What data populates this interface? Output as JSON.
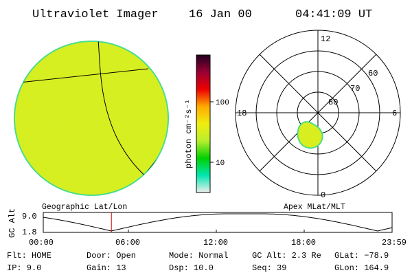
{
  "header": {
    "instrument": "Ultraviolet Imager",
    "date": "16 Jan 00",
    "time": "04:41:09 UT"
  },
  "colors": {
    "disk_fill": "#d9ef1c",
    "disk_edge": "#49dd8a",
    "oval_fill": "#d8ee1e",
    "oval_edge": "#49dd8a",
    "marker": "#cc0000"
  },
  "left_panel": {
    "label": "Geographic Lat/Lon"
  },
  "right_panel": {
    "label": "Apex MLat/MLT",
    "mlt_labels": {
      "top": "12",
      "left": "18",
      "right": "6",
      "bottom": "0"
    },
    "ring_labels": [
      "80",
      "70",
      "60"
    ]
  },
  "colorbar": {
    "unit_label": "photon cm⁻²s⁻¹",
    "ticks": [
      "100",
      "10"
    ],
    "stops": [
      "#eeeeee",
      "#00e6b0",
      "#00d000",
      "#b8ee2e",
      "#f0ee10",
      "#ffaa00",
      "#ee0000",
      "#990033",
      "#220022"
    ]
  },
  "altitude_plot": {
    "ylabel": "GC Alt",
    "yticks": [
      "9.0",
      "1.8"
    ],
    "xticks": [
      "00:00",
      "06:00",
      "12:00",
      "18:00",
      "23:59"
    ],
    "current_time_hours": 4.686
  },
  "footer": {
    "col1": [
      "Flt: HOME",
      "IP:  9.0"
    ],
    "col2": [
      "Door: Open",
      "Gain: 13"
    ],
    "col3": [
      "Mode: Normal",
      "Dsp:  10.0"
    ],
    "col4": [
      "GC Alt: 2.3 Re",
      "Seq: 39"
    ],
    "col5": [
      "GLat: −78.9",
      "GLon: 164.9"
    ]
  }
}
